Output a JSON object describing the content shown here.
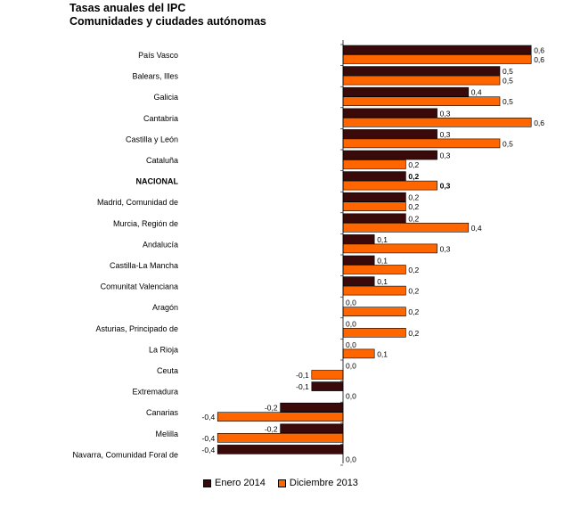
{
  "title": "Tasas anuales del IPC",
  "subtitle": "Comunidades y ciudades autónomas",
  "colors": {
    "enero": "#3a0a0a",
    "diciembre": "#ff6600"
  },
  "chart_data": {
    "type": "bar",
    "orientation": "horizontal",
    "title": "Tasas anuales del IPC",
    "subtitle": "Comunidades y ciudades autónomas",
    "xlim": [
      -0.4,
      0.6
    ],
    "grid": false,
    "legend": "bottom",
    "categories": [
      "País Vasco",
      "Balears, Illes",
      "Galicia",
      "Cantabria",
      "Castilla y León",
      "Cataluña",
      "NACIONAL",
      "Madrid, Comunidad de",
      "Murcia, Región de",
      "Andalucía",
      "Castilla-La Mancha",
      "Comunitat Valenciana",
      "Aragón",
      "Asturias, Principado de",
      "La Rioja",
      "Ceuta",
      "Extremadura",
      "Canarias",
      "Melilla",
      "Navarra, Comunidad Foral de"
    ],
    "bold_category": "NACIONAL",
    "series": [
      {
        "name": "Enero 2014",
        "values": [
          0.6,
          0.5,
          0.4,
          0.3,
          0.3,
          0.3,
          0.2,
          0.2,
          0.2,
          0.1,
          0.1,
          0.1,
          0.0,
          0.0,
          0.0,
          0.0,
          -0.1,
          -0.2,
          -0.2,
          -0.4
        ],
        "labels": [
          "0,6",
          "0,5",
          "0,4",
          "0,3",
          "0,3",
          "0,3",
          "0,2",
          "0,2",
          "0,2",
          "0,1",
          "0,1",
          "0,1",
          "0,0",
          "0,0",
          "0,0",
          "0,0",
          "-0,1",
          "-0,2",
          "-0,2",
          "-0,4"
        ]
      },
      {
        "name": "Diciembre 2013",
        "values": [
          0.6,
          0.5,
          0.5,
          0.6,
          0.5,
          0.2,
          0.3,
          0.2,
          0.4,
          0.3,
          0.2,
          0.2,
          0.2,
          0.2,
          0.1,
          -0.1,
          0.0,
          -0.4,
          -0.4,
          0.0
        ],
        "labels": [
          "0,6",
          "0,5",
          "0,5",
          "0,6",
          "0,5",
          "0,2",
          "0,3",
          "0,2",
          "0,4",
          "0,3",
          "0,2",
          "0,2",
          "0,2",
          "0,2",
          "0,1",
          "-0,1",
          "0,0",
          "-0,4",
          "-0,4",
          "0,0"
        ]
      }
    ]
  }
}
